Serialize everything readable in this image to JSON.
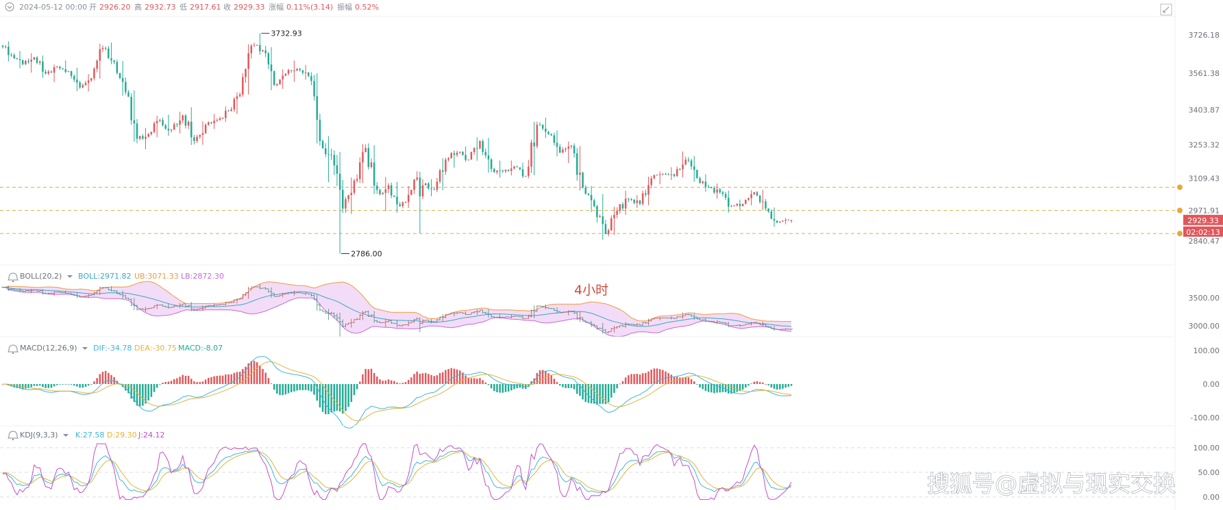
{
  "header": {
    "date": "2024-05-12 00:00",
    "open_label": "开",
    "open": "2926.20",
    "high_label": "高",
    "high": "2932.73",
    "low_label": "低",
    "low": "2917.61",
    "close_label": "收",
    "close": "2929.33",
    "change_label": "涨幅",
    "change": "0.11%(3.14)",
    "amplitude_label": "振幅",
    "amplitude": "0.52%"
  },
  "price_panel": {
    "yticks": [
      "3726.18",
      "3561.38",
      "3403.87",
      "3253.32",
      "3109.43",
      "2971.91",
      "2840.47"
    ],
    "ytick_values": [
      3726.18,
      3561.38,
      3403.87,
      3253.32,
      3109.43,
      2971.91,
      2840.47
    ],
    "high_mark": "3732.93",
    "low_mark": "2786.00",
    "last_price": "2929.33",
    "countdown": "02:02:13",
    "hlines": [
      3071.33,
      2971.82,
      2872.3
    ]
  },
  "boll": {
    "title": "BOLL(20,2)",
    "mid": "BOLL:2971.82",
    "ub": "UB:3071.33",
    "lb": "LB:2872.30",
    "yticks": [
      "3500.00",
      "3000.00"
    ],
    "watermark": "4小时"
  },
  "macd": {
    "title": "MACD(12,26,9)",
    "dif": "DIF:-34.78",
    "dea": "DEA:-30.75",
    "macd": "MACD:-8.07",
    "yticks": [
      "100.00",
      "0.00",
      "-100.00"
    ]
  },
  "kdj": {
    "title": "KDJ(9,3,3)",
    "k": "K:27.58",
    "d": "D:29.30",
    "j": "J:24.12",
    "yticks": [
      "100.00",
      "50.00",
      "0.00"
    ]
  },
  "colors": {
    "up": "#e0575b",
    "down": "#22ab94",
    "dash": "#d4b24a",
    "boll_mid": "#38a7c4",
    "boll_ub": "#f09a3e",
    "boll_lb": "#c56ad7",
    "boll_fill": "#f3dcf7",
    "dif": "#3db5d9",
    "dea": "#e3b23c",
    "j": "#c74cc7"
  },
  "footer": {
    "watermark": "搜狐号@虚拟与现实交换"
  },
  "chart_data": {
    "type": "candlestick",
    "interval": "4小时",
    "ohlc_waypoints": [
      [
        3680,
        3700,
        3610,
        3640
      ],
      [
        3640,
        3660,
        3580,
        3600
      ],
      [
        3600,
        3650,
        3560,
        3630
      ],
      [
        3630,
        3640,
        3540,
        3560
      ],
      [
        3560,
        3600,
        3520,
        3590
      ],
      [
        3590,
        3620,
        3560,
        3570
      ],
      [
        3570,
        3590,
        3480,
        3500
      ],
      [
        3500,
        3560,
        3480,
        3540
      ],
      [
        3540,
        3690,
        3530,
        3670
      ],
      [
        3670,
        3700,
        3600,
        3610
      ],
      [
        3610,
        3620,
        3460,
        3480
      ],
      [
        3480,
        3500,
        3260,
        3280
      ],
      [
        3280,
        3330,
        3230,
        3300
      ],
      [
        3300,
        3380,
        3280,
        3360
      ],
      [
        3360,
        3390,
        3290,
        3320
      ],
      [
        3320,
        3400,
        3300,
        3380
      ],
      [
        3380,
        3420,
        3250,
        3270
      ],
      [
        3270,
        3360,
        3250,
        3340
      ],
      [
        3340,
        3390,
        3320,
        3360
      ],
      [
        3360,
        3420,
        3350,
        3400
      ],
      [
        3400,
        3480,
        3380,
        3470
      ],
      [
        3470,
        3690,
        3460,
        3680
      ],
      [
        3680,
        3732.93,
        3640,
        3660
      ],
      [
        3660,
        3680,
        3480,
        3510
      ],
      [
        3510,
        3580,
        3490,
        3560
      ],
      [
        3560,
        3620,
        3520,
        3580
      ],
      [
        3580,
        3600,
        3530,
        3550
      ],
      [
        3550,
        3570,
        3250,
        3270
      ],
      [
        3270,
        3300,
        3080,
        3210
      ],
      [
        3210,
        3230,
        2786,
        2980
      ],
      [
        2980,
        3120,
        2950,
        3100
      ],
      [
        3100,
        3260,
        3080,
        3240
      ],
      [
        3240,
        3260,
        3040,
        3060
      ],
      [
        3060,
        3120,
        2960,
        3080
      ],
      [
        3080,
        3100,
        2960,
        2990
      ],
      [
        2990,
        3080,
        2980,
        3060
      ],
      [
        3060,
        3140,
        2860,
        3080
      ],
      [
        3080,
        3110,
        3030,
        3060
      ],
      [
        3060,
        3200,
        3050,
        3190
      ],
      [
        3190,
        3230,
        3150,
        3220
      ],
      [
        3220,
        3250,
        3180,
        3190
      ],
      [
        3190,
        3290,
        3180,
        3270
      ],
      [
        3270,
        3290,
        3130,
        3150
      ],
      [
        3150,
        3190,
        3110,
        3140
      ],
      [
        3140,
        3190,
        3120,
        3160
      ],
      [
        3160,
        3180,
        3110,
        3120
      ],
      [
        3120,
        3360,
        3110,
        3340
      ],
      [
        3340,
        3375,
        3280,
        3300
      ],
      [
        3300,
        3320,
        3200,
        3220
      ],
      [
        3220,
        3270,
        3170,
        3250
      ],
      [
        3250,
        3260,
        3050,
        3070
      ],
      [
        3070,
        3080,
        2960,
        2990
      ],
      [
        2990,
        3050,
        2840,
        2870
      ],
      [
        2870,
        2990,
        2860,
        2970
      ],
      [
        2970,
        3060,
        2950,
        3020
      ],
      [
        3020,
        3040,
        2980,
        3000
      ],
      [
        3000,
        3120,
        2990,
        3110
      ],
      [
        3110,
        3140,
        3080,
        3130
      ],
      [
        3130,
        3160,
        3100,
        3120
      ],
      [
        3120,
        3230,
        3110,
        3190
      ],
      [
        3190,
        3210,
        3090,
        3110
      ],
      [
        3110,
        3130,
        3050,
        3070
      ],
      [
        3070,
        3090,
        3020,
        3050
      ],
      [
        3050,
        3060,
        2960,
        2990
      ],
      [
        2990,
        3020,
        2970,
        3000
      ],
      [
        3000,
        3060,
        2990,
        3050
      ],
      [
        3050,
        3065,
        2970,
        2980
      ],
      [
        2980,
        2990,
        2900,
        2920
      ],
      [
        2920,
        2940,
        2910,
        2930
      ],
      [
        2926.2,
        2932.73,
        2917.61,
        2929.33
      ]
    ]
  }
}
